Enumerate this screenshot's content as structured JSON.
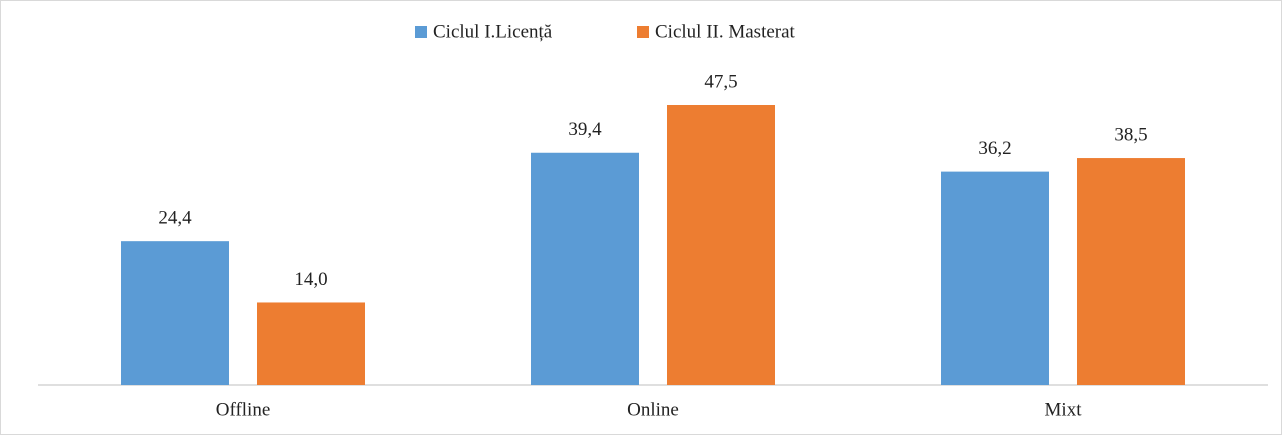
{
  "chart_data": {
    "type": "bar",
    "categories": [
      "Offline",
      "Online",
      "Mixt"
    ],
    "series": [
      {
        "name": "Ciclul I.Licență",
        "color": "#5b9bd5",
        "values": [
          24.4,
          39.4,
          36.2
        ],
        "value_labels": [
          "24,4",
          "39,4",
          "36,2"
        ]
      },
      {
        "name": "Ciclul II. Masterat",
        "color": "#ed7d31",
        "values": [
          14.0,
          47.5,
          38.5
        ],
        "value_labels": [
          "14,0",
          "47,5",
          "38,5"
        ]
      }
    ],
    "legend": "top"
  }
}
